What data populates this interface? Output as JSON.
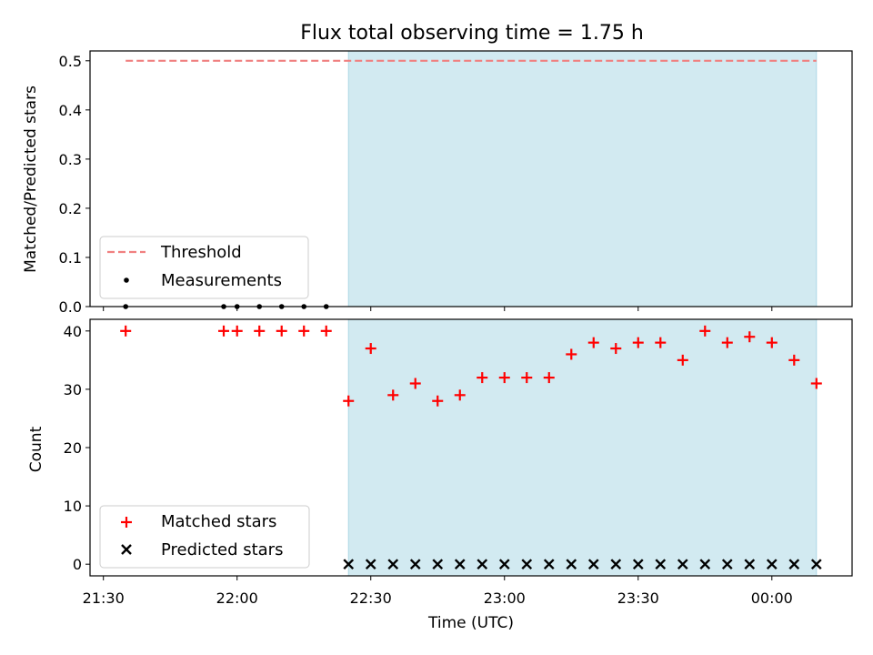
{
  "chart_data": {
    "type": "scatter",
    "title": "Flux total observing time = 1.75 h",
    "xlabel": "Time (UTC)",
    "x_tick_labels": [
      "21:30",
      "22:00",
      "22:30",
      "23:00",
      "23:30",
      "00:00"
    ],
    "x_tick_values": [
      "21:30",
      "22:00",
      "22:30",
      "23:00",
      "23:30",
      "00:00"
    ],
    "xlim": [
      "21:27",
      "00:18"
    ],
    "shaded_interval": [
      "22:25",
      "00:10"
    ],
    "shade_color": "#add8e6",
    "panels": [
      {
        "ylabel": "Matched/Predicted stars",
        "ylim": [
          0,
          0.52
        ],
        "yticks": [
          0.0,
          0.1,
          0.2,
          0.3,
          0.4,
          0.5
        ],
        "ytick_labels": [
          "0.0",
          "0.1",
          "0.2",
          "0.3",
          "0.4",
          "0.5"
        ],
        "series": [
          {
            "name": "Threshold",
            "kind": "line",
            "style": "dashed",
            "color": "#f08080",
            "x": [
              "21:35",
              "00:10"
            ],
            "y": [
              0.5,
              0.5
            ]
          },
          {
            "name": "Measurements",
            "kind": "scatter",
            "marker": "dot",
            "color": "#000000",
            "x": [
              "21:35",
              "21:57",
              "22:00",
              "22:05",
              "22:10",
              "22:15",
              "22:20"
            ],
            "y": [
              0,
              0,
              0,
              0,
              0,
              0,
              0
            ]
          }
        ],
        "legend": {
          "location": "lower-left"
        }
      },
      {
        "ylabel": "Count",
        "ylim": [
          -2,
          42
        ],
        "yticks": [
          0,
          10,
          20,
          30,
          40
        ],
        "ytick_labels": [
          "0",
          "10",
          "20",
          "30",
          "40"
        ],
        "series": [
          {
            "name": "Matched stars",
            "kind": "scatter",
            "marker": "plus",
            "color": "#ff0000",
            "x": [
              "21:35",
              "21:57",
              "22:00",
              "22:05",
              "22:10",
              "22:15",
              "22:20",
              "22:25",
              "22:30",
              "22:35",
              "22:40",
              "22:45",
              "22:50",
              "22:55",
              "23:00",
              "23:05",
              "23:10",
              "23:15",
              "23:20",
              "23:25",
              "23:30",
              "23:35",
              "23:40",
              "23:45",
              "23:50",
              "23:55",
              "00:00",
              "00:05",
              "00:10"
            ],
            "y": [
              40,
              40,
              40,
              40,
              40,
              40,
              40,
              28,
              37,
              29,
              31,
              28,
              29,
              32,
              32,
              32,
              32,
              36,
              38,
              37,
              38,
              38,
              35,
              40,
              38,
              39,
              38,
              35,
              31
            ]
          },
          {
            "name": "Predicted stars",
            "kind": "scatter",
            "marker": "x",
            "color": "#000000",
            "x": [
              "22:25",
              "22:30",
              "22:35",
              "22:40",
              "22:45",
              "22:50",
              "22:55",
              "23:00",
              "23:05",
              "23:10",
              "23:15",
              "23:20",
              "23:25",
              "23:30",
              "23:35",
              "23:40",
              "23:45",
              "23:50",
              "23:55",
              "00:00",
              "00:05",
              "00:10"
            ],
            "y": [
              0,
              0,
              0,
              0,
              0,
              0,
              0,
              0,
              0,
              0,
              0,
              0,
              0,
              0,
              0,
              0,
              0,
              0,
              0,
              0,
              0,
              0
            ]
          }
        ],
        "legend": {
          "location": "lower-left"
        }
      }
    ]
  }
}
